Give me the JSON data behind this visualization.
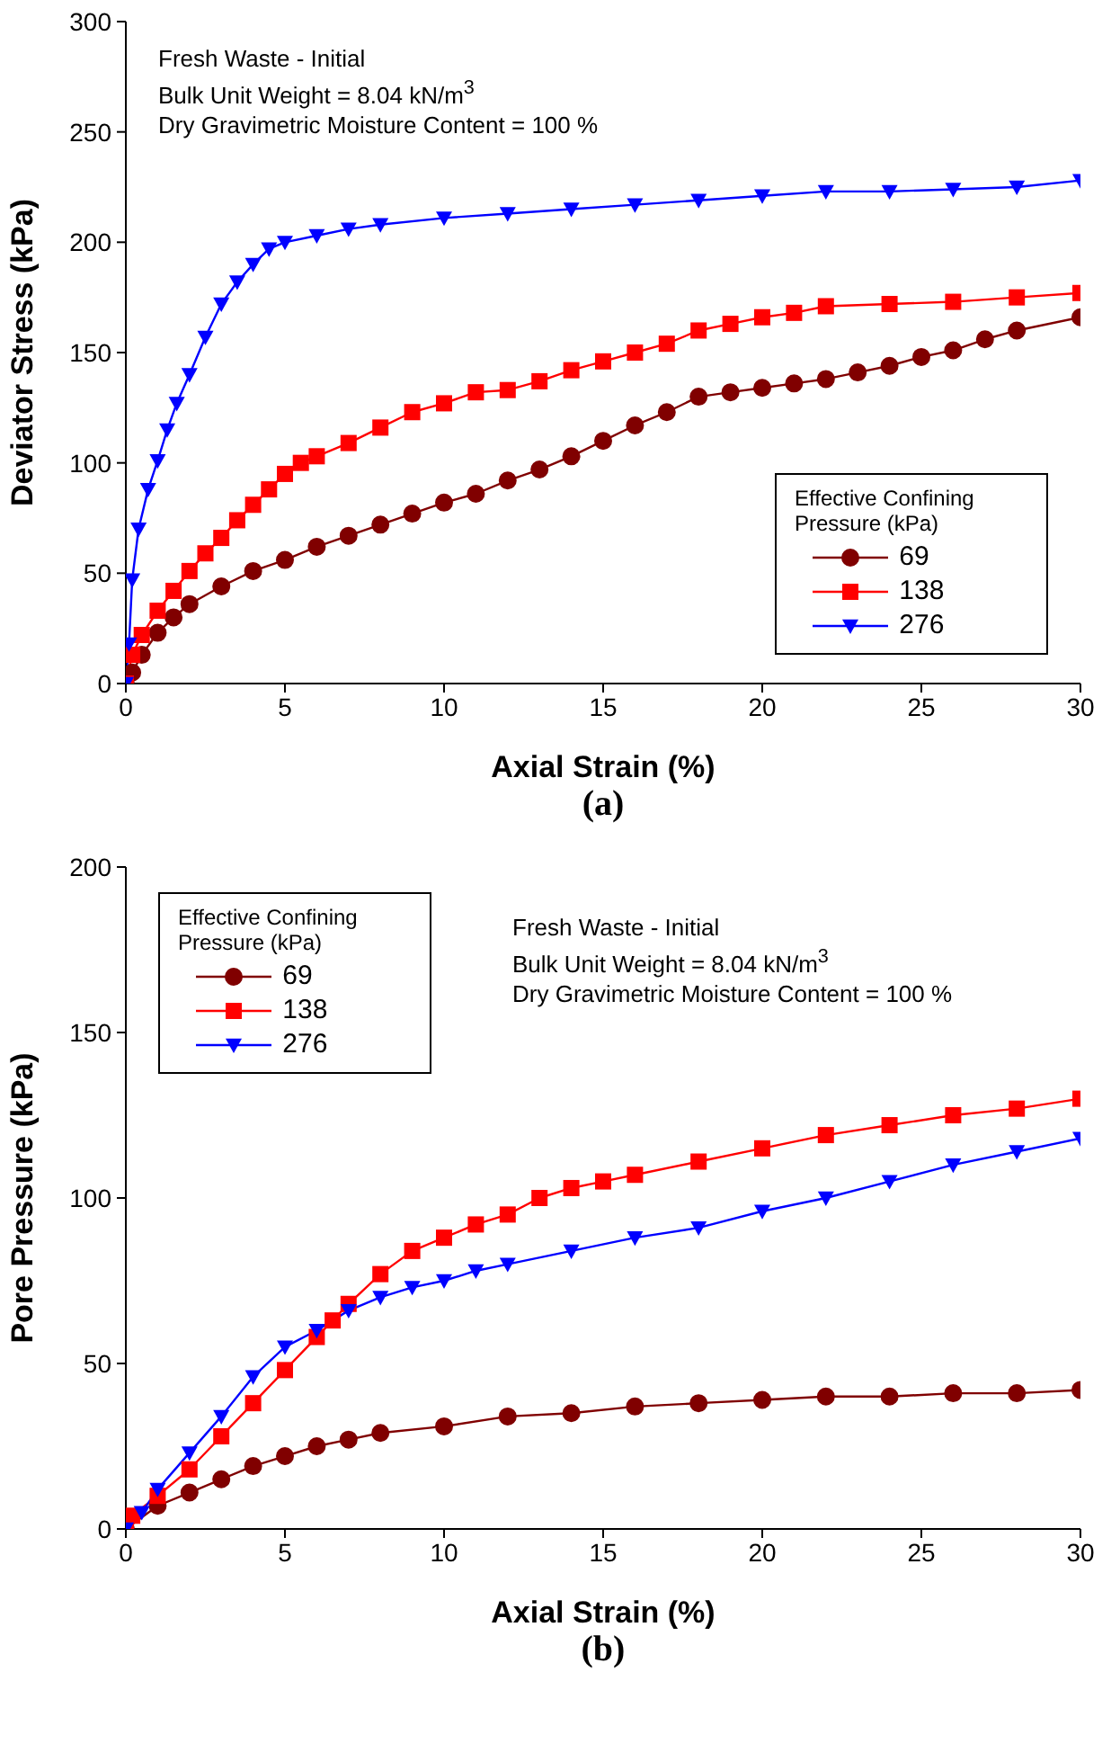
{
  "chart_data": [
    {
      "type": "line",
      "title": "(a)",
      "xlabel": "Axial Strain (%)",
      "ylabel": "Deviator Stress (kPa)",
      "legend_title": "Effective Confining Pressure (kPa)",
      "legend": "bottom right",
      "grid": false,
      "xlim": [
        0,
        30
      ],
      "xticks": [
        0,
        5,
        10,
        15,
        20,
        25,
        30
      ],
      "ylim": [
        0,
        300
      ],
      "yticks": [
        0,
        50,
        100,
        150,
        200,
        250,
        300
      ],
      "annotations": [
        "Fresh Waste - Initial",
        "Bulk Unit Weight = 8.04 kN/m$^{3}$",
        "Dry Gravimetric Moisture Content = 100 %"
      ],
      "series": [
        {
          "name": "69",
          "color": "#800000",
          "marker": "circle",
          "x": [
            0,
            0.2,
            0.5,
            1,
            1.5,
            2,
            3,
            4,
            5,
            6,
            7,
            8,
            9,
            10,
            11,
            12,
            13,
            14,
            15,
            16,
            17,
            18,
            19,
            20,
            21,
            22,
            23,
            24,
            25,
            26,
            27,
            28,
            30
          ],
          "values": [
            0,
            5,
            13,
            23,
            30,
            36,
            44,
            51,
            56,
            62,
            67,
            72,
            77,
            82,
            86,
            92,
            97,
            103,
            110,
            117,
            123,
            130,
            132,
            134,
            136,
            138,
            141,
            144,
            148,
            151,
            156,
            160,
            166
          ]
        },
        {
          "name": "138",
          "color": "#ff0000",
          "marker": "square",
          "x": [
            0,
            0.2,
            0.5,
            1,
            1.5,
            2,
            2.5,
            3,
            3.5,
            4,
            4.5,
            5,
            5.5,
            6,
            7,
            8,
            9,
            10,
            11,
            12,
            13,
            14,
            15,
            16,
            17,
            18,
            19,
            20,
            21,
            22,
            24,
            26,
            28,
            30
          ],
          "values": [
            0,
            13,
            22,
            33,
            42,
            51,
            59,
            66,
            74,
            81,
            88,
            95,
            100,
            103,
            109,
            116,
            123,
            127,
            132,
            133,
            137,
            142,
            146,
            150,
            154,
            160,
            163,
            166,
            168,
            171,
            172,
            173,
            175,
            177
          ]
        },
        {
          "name": "276",
          "color": "#0000ff",
          "marker": "triangle",
          "x": [
            0,
            0.1,
            0.2,
            0.4,
            0.7,
            1,
            1.3,
            1.6,
            2,
            2.5,
            3,
            3.5,
            4,
            4.5,
            5,
            6,
            7,
            8,
            10,
            12,
            14,
            16,
            18,
            20,
            22,
            24,
            26,
            28,
            30
          ],
          "values": [
            0,
            18,
            47,
            70,
            88,
            101,
            115,
            127,
            140,
            157,
            172,
            182,
            190,
            197,
            200,
            203,
            206,
            208,
            211,
            213,
            215,
            217,
            219,
            221,
            223,
            223,
            224,
            225,
            228
          ]
        }
      ]
    },
    {
      "type": "line",
      "title": "(b)",
      "xlabel": "Axial Strain (%)",
      "ylabel": "Pore Pressure (kPa)",
      "legend_title": "Effective Confining Pressure (kPa)",
      "legend": "top left",
      "grid": false,
      "xlim": [
        0,
        30
      ],
      "xticks": [
        0,
        5,
        10,
        15,
        20,
        25,
        30
      ],
      "ylim": [
        0,
        200
      ],
      "yticks": [
        0,
        50,
        100,
        150,
        200
      ],
      "annotations": [
        "Fresh Waste - Initial",
        "Bulk Unit Weight = 8.04 kN/m$^{3}$",
        "Dry Gravimetric Moisture Content = 100 %"
      ],
      "series": [
        {
          "name": "69",
          "color": "#800000",
          "marker": "circle",
          "x": [
            0,
            1,
            2,
            3,
            4,
            5,
            6,
            7,
            8,
            10,
            12,
            14,
            16,
            18,
            20,
            22,
            24,
            26,
            28,
            30
          ],
          "values": [
            0,
            7,
            11,
            15,
            19,
            22,
            25,
            27,
            29,
            31,
            34,
            35,
            37,
            38,
            39,
            40,
            40,
            41,
            41,
            42
          ]
        },
        {
          "name": "138",
          "color": "#ff0000",
          "marker": "square",
          "x": [
            0,
            0.2,
            1,
            2,
            3,
            4,
            5,
            6,
            6.5,
            7,
            8,
            9,
            10,
            11,
            12,
            13,
            14,
            15,
            16,
            18,
            20,
            22,
            24,
            26,
            28,
            30
          ],
          "values": [
            0,
            4,
            10,
            18,
            28,
            38,
            48,
            58,
            63,
            68,
            77,
            84,
            88,
            92,
            95,
            100,
            103,
            105,
            107,
            111,
            115,
            119,
            122,
            125,
            127,
            130
          ]
        },
        {
          "name": "276",
          "color": "#0000ff",
          "marker": "triangle",
          "x": [
            0,
            0.5,
            1,
            2,
            3,
            4,
            5,
            6,
            7,
            8,
            9,
            10,
            11,
            12,
            14,
            16,
            18,
            20,
            22,
            24,
            26,
            28,
            30
          ],
          "values": [
            0,
            5,
            12,
            23,
            34,
            46,
            55,
            60,
            66,
            70,
            73,
            75,
            78,
            80,
            84,
            88,
            91,
            96,
            100,
            105,
            110,
            114,
            118
          ]
        }
      ]
    }
  ]
}
